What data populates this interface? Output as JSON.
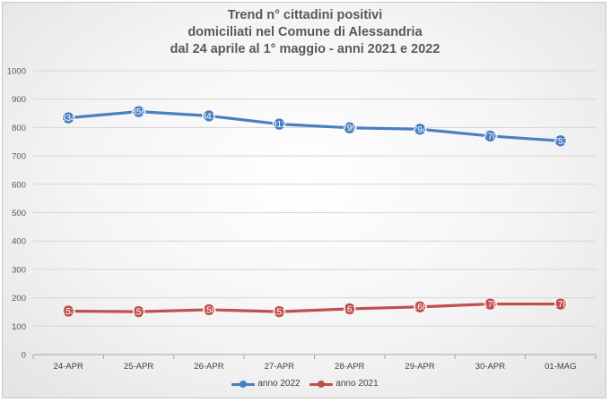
{
  "chart_data": {
    "type": "line",
    "title_lines": [
      "Trend n° cittadini positivi",
      "domiciliati nel Comune di Alessandria",
      "dal 24 aprile al 1° maggio - anni 2021 e 2022"
    ],
    "xlabel": "",
    "ylabel": "",
    "categories": [
      "24-APR",
      "25-APR",
      "26-APR",
      "27-APR",
      "28-APR",
      "29-APR",
      "30-APR",
      "01-MAG"
    ],
    "ylim": [
      0,
      1000
    ],
    "yticks": [
      0,
      100,
      200,
      300,
      400,
      500,
      600,
      700,
      800,
      900,
      1000
    ],
    "grid": true,
    "legend_position": "bottom",
    "series": [
      {
        "name": "anno 2022",
        "color": "#4a7fc1",
        "values": [
          834,
          856,
          841,
          812,
          799,
          794,
          770,
          753
        ]
      },
      {
        "name": "anno 2021",
        "color": "#c0504d",
        "values": [
          153,
          151,
          158,
          151,
          161,
          168,
          178,
          178
        ]
      }
    ]
  }
}
